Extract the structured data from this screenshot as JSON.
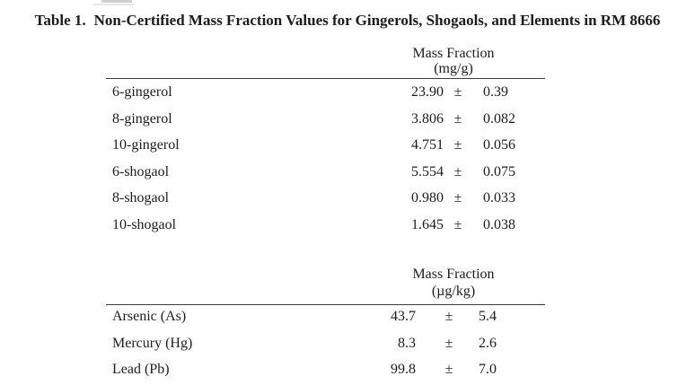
{
  "caption": {
    "table_number": "Table 1.",
    "title": "Non-Certified Mass Fraction Values for Gingerols, Shogaols, and Elements in RM 8666"
  },
  "colors": {
    "background": "#ffffff",
    "text": "#1c1c1c",
    "rule": "#3b3b3b"
  },
  "tables": [
    {
      "header": {
        "line1": "Mass Fraction",
        "line2": "(mg/g)"
      },
      "rows": [
        {
          "label": "6-gingerol",
          "value": "23.90",
          "pm": "±",
          "uncertainty": "0.39"
        },
        {
          "label": "8-gingerol",
          "value": "3.806",
          "pm": "±",
          "uncertainty": "0.082"
        },
        {
          "label": "10-gingerol",
          "value": "4.751",
          "pm": "±",
          "uncertainty": "0.056"
        },
        {
          "label": "6-shogaol",
          "value": "5.554",
          "pm": "±",
          "uncertainty": "0.075"
        },
        {
          "label": "8-shogaol",
          "value": "0.980",
          "pm": "±",
          "uncertainty": "0.033"
        },
        {
          "label": "10-shogaol",
          "value": "1.645",
          "pm": "±",
          "uncertainty": "0.038"
        }
      ]
    },
    {
      "header": {
        "line1": "Mass Fraction",
        "line2": "(µg/kg)"
      },
      "rows": [
        {
          "label": "Arsenic (As)",
          "value": "43.7",
          "pm": "±",
          "uncertainty": "5.4"
        },
        {
          "label": "Mercury (Hg)",
          "value": "8.3",
          "pm": "±",
          "uncertainty": "2.6"
        },
        {
          "label": "Lead (Pb)",
          "value": "99.8",
          "pm": "±",
          "uncertainty": "7.0"
        }
      ]
    }
  ]
}
